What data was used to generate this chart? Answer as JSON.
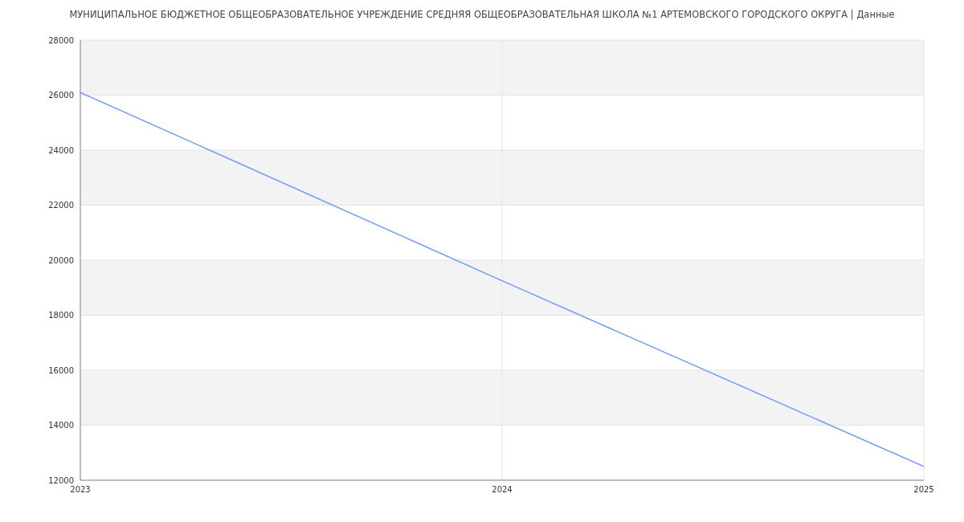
{
  "chart_data": {
    "type": "line",
    "title": "МУНИЦИПАЛЬНОЕ БЮДЖЕТНОЕ ОБЩЕОБРАЗОВАТЕЛЬНОЕ УЧРЕЖДЕНИЕ СРЕДНЯЯ ОБЩЕОБРАЗОВАТЕЛЬНАЯ ШКОЛА №1 АРТЕМОВСКОГО ГОРОДСКОГО ОКРУГА | Данные",
    "x": [
      2023,
      2024,
      2025
    ],
    "series": [
      {
        "color": "#6f9cf7",
        "values": [
          26100,
          19250,
          12500
        ]
      }
    ],
    "xlim": [
      2023,
      2025
    ],
    "xticks": [
      2023,
      2024,
      2025
    ],
    "ylim": [
      12000,
      28000
    ],
    "yticks": [
      12000,
      14000,
      16000,
      18000,
      20000,
      22000,
      24000,
      26000,
      28000
    ],
    "grid": true,
    "legend": false,
    "marker": "none",
    "line_style": "solid"
  }
}
